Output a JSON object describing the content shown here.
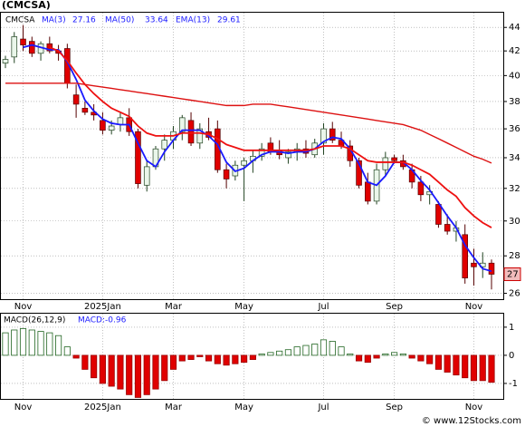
{
  "chart_data": [
    {
      "type": "candlestick",
      "title": "(CMCSA)",
      "ticker": "CMCSA",
      "categories": [
        null,
        null,
        "Nov",
        null,
        null,
        null,
        null,
        null,
        null,
        null,
        null,
        "2025Jan",
        null,
        null,
        null,
        null,
        null,
        null,
        null,
        "Mar",
        null,
        null,
        null,
        null,
        null,
        null,
        null,
        "May",
        null,
        null,
        null,
        null,
        null,
        null,
        null,
        null,
        "Jul",
        null,
        null,
        null,
        null,
        null,
        null,
        null,
        "Sep",
        null,
        null,
        null,
        null,
        null,
        null,
        null,
        null,
        "Nov",
        null,
        null
      ],
      "open": [
        41.0,
        41.5,
        43.0,
        42.8,
        41.8,
        42.6,
        42.0,
        42.2,
        38.5,
        37.5,
        37.2,
        36.6,
        35.9,
        36.3,
        36.8,
        35.8,
        32.2,
        33.4,
        34.6,
        35.2,
        35.8,
        36.6,
        35.0,
        35.8,
        36.0,
        33.2,
        32.8,
        33.5,
        33.8,
        34.1,
        35.0,
        34.5,
        34.0,
        34.4,
        34.6,
        34.2,
        35.0,
        36.0,
        35.2,
        34.8,
        33.8,
        32.4,
        31.2,
        33.2,
        34.0,
        33.8,
        33.2,
        32.4,
        31.6,
        31.0,
        29.8,
        29.4,
        29.2,
        27.6,
        27.4,
        27.6
      ],
      "high": [
        41.6,
        43.6,
        44.2,
        43.2,
        42.8,
        43.2,
        42.5,
        42.6,
        39.3,
        38.0,
        37.8,
        37.2,
        36.6,
        37.2,
        37.5,
        36.0,
        33.8,
        34.8,
        35.6,
        36.2,
        37.0,
        37.2,
        36.4,
        36.8,
        36.6,
        33.6,
        33.8,
        34.0,
        34.5,
        35.0,
        35.4,
        35.2,
        34.6,
        35.0,
        35.2,
        35.3,
        36.4,
        36.5,
        35.8,
        35.2,
        34.0,
        33.0,
        33.6,
        34.4,
        34.2,
        34.2,
        33.6,
        32.8,
        32.2,
        31.2,
        30.4,
        30.0,
        29.8,
        28.4,
        28.2,
        27.8
      ],
      "low": [
        40.6,
        41.0,
        42.0,
        41.5,
        41.2,
        41.8,
        41.2,
        39.0,
        36.8,
        37.0,
        36.6,
        35.6,
        35.6,
        35.8,
        35.5,
        32.0,
        31.8,
        33.2,
        33.8,
        34.6,
        35.2,
        34.8,
        34.6,
        35.2,
        33.0,
        32.0,
        32.5,
        31.2,
        33.0,
        33.8,
        34.2,
        33.9,
        33.6,
        33.8,
        34.0,
        34.0,
        34.2,
        35.0,
        34.6,
        33.4,
        32.0,
        31.0,
        31.0,
        32.8,
        33.6,
        33.2,
        32.0,
        31.2,
        31.0,
        29.6,
        29.2,
        28.8,
        26.5,
        26.4,
        26.8,
        26.2
      ],
      "close": [
        41.3,
        43.2,
        42.5,
        41.8,
        42.6,
        42.0,
        41.8,
        39.4,
        37.8,
        37.2,
        37.0,
        35.9,
        36.2,
        36.8,
        35.8,
        32.3,
        33.4,
        34.6,
        35.2,
        35.8,
        36.8,
        35.0,
        36.0,
        35.4,
        33.2,
        32.6,
        33.5,
        33.8,
        34.1,
        34.6,
        34.4,
        34.2,
        34.4,
        34.6,
        34.3,
        35.0,
        36.0,
        35.2,
        34.8,
        33.8,
        32.2,
        31.2,
        33.2,
        34.0,
        33.8,
        33.4,
        32.4,
        31.6,
        31.8,
        29.8,
        29.4,
        29.6,
        26.8,
        27.4,
        27.6,
        27.0
      ],
      "series": [
        {
          "name": "MA(3)",
          "legend_value": 27.16,
          "color": "#1a1aff",
          "values": [
            null,
            null,
            42.3,
            42.5,
            42.3,
            42.1,
            42.1,
            41.1,
            39.7,
            38.1,
            37.3,
            36.7,
            36.4,
            36.3,
            36.3,
            35.0,
            33.8,
            33.4,
            34.4,
            35.2,
            35.9,
            35.9,
            35.9,
            35.5,
            34.9,
            33.7,
            33.1,
            33.3,
            33.8,
            34.2,
            34.4,
            34.4,
            34.3,
            34.4,
            34.4,
            34.6,
            35.1,
            35.4,
            35.3,
            34.6,
            33.6,
            32.4,
            32.2,
            32.8,
            33.7,
            33.7,
            33.2,
            32.5,
            31.9,
            31.1,
            30.3,
            29.6,
            28.6,
            27.9,
            27.3,
            27.16
          ]
        },
        {
          "name": "MA(50)",
          "legend_value": 33.64,
          "color": "#dd1111",
          "values": [
            39.4,
            39.4,
            39.4,
            39.4,
            39.4,
            39.4,
            39.4,
            39.4,
            39.4,
            39.3,
            39.2,
            39.1,
            39.0,
            38.9,
            38.8,
            38.7,
            38.6,
            38.5,
            38.4,
            38.3,
            38.2,
            38.1,
            38.0,
            37.9,
            37.8,
            37.7,
            37.7,
            37.7,
            37.8,
            37.8,
            37.8,
            37.7,
            37.6,
            37.5,
            37.4,
            37.3,
            37.2,
            37.1,
            37.0,
            36.9,
            36.8,
            36.7,
            36.6,
            36.5,
            36.4,
            36.3,
            36.1,
            35.9,
            35.6,
            35.3,
            35.0,
            34.7,
            34.4,
            34.1,
            33.9,
            33.64
          ]
        },
        {
          "name": "EMA(13)",
          "legend_value": 29.61,
          "color": "#ee1111",
          "values": [
            null,
            null,
            null,
            null,
            null,
            42.3,
            42.0,
            41.2,
            40.2,
            39.3,
            38.6,
            38.0,
            37.5,
            37.2,
            36.9,
            36.2,
            35.7,
            35.5,
            35.5,
            35.5,
            35.7,
            35.7,
            35.7,
            35.6,
            35.3,
            34.9,
            34.7,
            34.5,
            34.5,
            34.5,
            34.5,
            34.5,
            34.5,
            34.5,
            34.5,
            34.6,
            34.8,
            34.8,
            34.8,
            34.6,
            34.2,
            33.8,
            33.7,
            33.7,
            33.7,
            33.7,
            33.5,
            33.2,
            32.9,
            32.4,
            31.9,
            31.5,
            30.8,
            30.3,
            29.9,
            29.61
          ]
        }
      ],
      "price_label": 27,
      "yscale": "log",
      "ylim": [
        25.7,
        45.3
      ],
      "yticks": [
        26,
        28,
        30,
        32,
        34,
        36,
        38,
        40,
        42,
        44
      ],
      "grid": true
    },
    {
      "type": "histogram-bar",
      "title": "MACD(26,12,9)",
      "macd_label": "MACD:-0.96",
      "values": [
        0.8,
        0.9,
        0.95,
        0.9,
        0.85,
        0.8,
        0.7,
        0.3,
        -0.1,
        -0.5,
        -0.8,
        -1.0,
        -1.1,
        -1.2,
        -1.4,
        -1.5,
        -1.4,
        -1.2,
        -0.9,
        -0.5,
        -0.2,
        -0.15,
        -0.05,
        -0.2,
        -0.3,
        -0.35,
        -0.3,
        -0.25,
        -0.15,
        0.05,
        0.1,
        0.15,
        0.2,
        0.3,
        0.35,
        0.4,
        0.55,
        0.5,
        0.3,
        0.05,
        -0.2,
        -0.25,
        -0.1,
        0.05,
        0.1,
        0.05,
        -0.1,
        -0.2,
        -0.3,
        -0.5,
        -0.6,
        -0.7,
        -0.8,
        -0.9,
        -0.9,
        -0.96
      ],
      "ylim": [
        -1.55,
        1.48
      ],
      "yticks": [
        1,
        0,
        -1
      ],
      "grid": true
    }
  ],
  "footer": "© www.12Stocks.com"
}
